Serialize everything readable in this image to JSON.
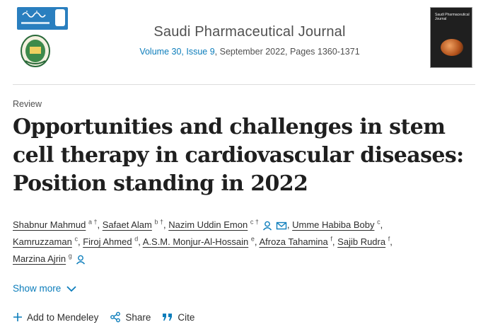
{
  "journal": {
    "name": "Saudi Pharmaceutical Journal",
    "volume_link": "Volume 30, Issue 9",
    "issue_rest": ", September 2022, Pages 1360-1371",
    "cover_title": "Saudi Pharmaceutical Journal"
  },
  "article": {
    "type": "Review",
    "title": "Opportunities and challenges in stem cell therapy in cardiovascular diseases: Position standing in 2022"
  },
  "authors": [
    {
      "name": "Shabnur Mahmud",
      "sup": "a †",
      "sep": ","
    },
    {
      "name": "Safaet Alam",
      "sup": "b †",
      "sep": ","
    },
    {
      "name": "Nazim Uddin Emon",
      "sup": "c †",
      "sep": ","
    },
    {
      "name": "Umme Habiba Boby",
      "sup": "c",
      "sep": ","
    },
    {
      "name": "Kamruzzaman",
      "sup": "c",
      "sep": ","
    },
    {
      "name": "Firoj Ahmed",
      "sup": "d",
      "sep": ","
    },
    {
      "name": "A.S.M. Monjur-Al-Hossain",
      "sup": "e",
      "sep": ","
    },
    {
      "name": "Afroza Tahamina",
      "sup": "f",
      "sep": ","
    },
    {
      "name": "Sajib Rudra",
      "sup": "f",
      "sep": ","
    },
    {
      "name": "Marzina Ajrin",
      "sup": "g",
      "sep": ""
    }
  ],
  "show_more": "Show more",
  "actions": {
    "mendeley": "Add to Mendeley",
    "share": "Share",
    "cite": "Cite"
  },
  "colors": {
    "link": "#0c7dbb",
    "text": "#2e2e2e"
  }
}
